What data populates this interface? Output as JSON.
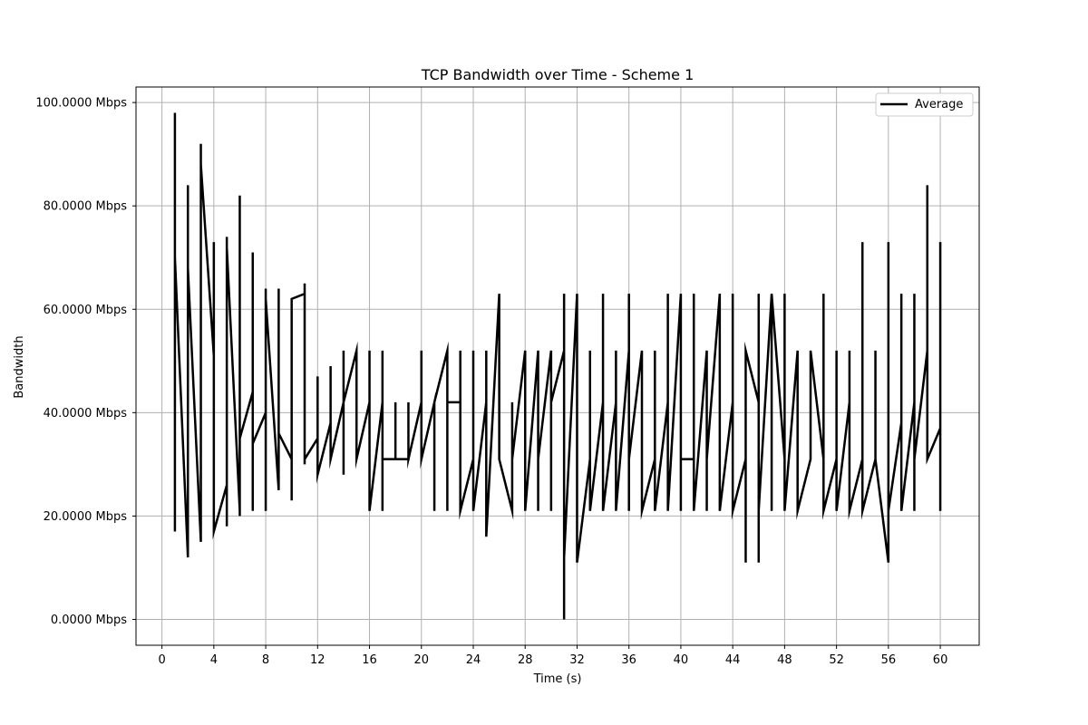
{
  "chart_data": {
    "type": "line",
    "title": "TCP Bandwidth over Time - Scheme 1",
    "xlabel": "Time (s)",
    "ylabel": "Bandwidth",
    "xlim": [
      -2,
      63
    ],
    "ylim": [
      -5,
      103
    ],
    "grid": true,
    "legend_position": "top-right",
    "x_ticks": [
      0,
      4,
      8,
      12,
      16,
      20,
      24,
      28,
      32,
      36,
      40,
      44,
      48,
      52,
      56,
      60
    ],
    "x_tick_labels": [
      "0",
      "4",
      "8",
      "12",
      "16",
      "20",
      "24",
      "28",
      "32",
      "36",
      "40",
      "44",
      "48",
      "52",
      "56",
      "60"
    ],
    "y_ticks": [
      0,
      20,
      40,
      60,
      80,
      100
    ],
    "y_tick_labels": [
      "0.0000 Mbps",
      "20.0000 Mbps",
      "40.0000 Mbps",
      "60.0000 Mbps",
      "80.0000 Mbps",
      "100.0000 Mbps"
    ],
    "series": [
      {
        "name": "Average",
        "color": "#000000",
        "points": [
          [
            1,
            17
          ],
          [
            1,
            98
          ],
          [
            1,
            70
          ],
          [
            2,
            12
          ],
          [
            2,
            84
          ],
          [
            2,
            68
          ],
          [
            3,
            15
          ],
          [
            3,
            92
          ],
          [
            3,
            88
          ],
          [
            4,
            51
          ],
          [
            4,
            73
          ],
          [
            4,
            17
          ],
          [
            5,
            26
          ],
          [
            5,
            74
          ],
          [
            5,
            18
          ],
          [
            5,
            72
          ],
          [
            6,
            21
          ],
          [
            6,
            82
          ],
          [
            6,
            20
          ],
          [
            6,
            35
          ],
          [
            7,
            44
          ],
          [
            7,
            71
          ],
          [
            7,
            21
          ],
          [
            7,
            34
          ],
          [
            8,
            40
          ],
          [
            8,
            64
          ],
          [
            8,
            21
          ],
          [
            8,
            62
          ],
          [
            9,
            25
          ],
          [
            9,
            64
          ],
          [
            9,
            36
          ],
          [
            10,
            31
          ],
          [
            10,
            23
          ],
          [
            10,
            62
          ],
          [
            11,
            63
          ],
          [
            11,
            65
          ],
          [
            11,
            30
          ],
          [
            11,
            31
          ],
          [
            12,
            35
          ],
          [
            12,
            47
          ],
          [
            12,
            28
          ],
          [
            13,
            38
          ],
          [
            13,
            49
          ],
          [
            13,
            31
          ],
          [
            14,
            42
          ],
          [
            14,
            52
          ],
          [
            14,
            28
          ],
          [
            14,
            42
          ],
          [
            15,
            52
          ],
          [
            15,
            31
          ],
          [
            16,
            42
          ],
          [
            16,
            52
          ],
          [
            16,
            21
          ],
          [
            17,
            42
          ],
          [
            17,
            52
          ],
          [
            17,
            21
          ],
          [
            17,
            31
          ],
          [
            18,
            31
          ],
          [
            18,
            42
          ],
          [
            18,
            31
          ],
          [
            19,
            31
          ],
          [
            19,
            42
          ],
          [
            19,
            31
          ],
          [
            20,
            42
          ],
          [
            20,
            52
          ],
          [
            20,
            31
          ],
          [
            21,
            42
          ],
          [
            21,
            21
          ],
          [
            21,
            42
          ],
          [
            22,
            52
          ],
          [
            22,
            21
          ],
          [
            22,
            42
          ],
          [
            23,
            42
          ],
          [
            23,
            52
          ],
          [
            23,
            21
          ],
          [
            24,
            31
          ],
          [
            24,
            52
          ],
          [
            24,
            21
          ],
          [
            25,
            42
          ],
          [
            25,
            52
          ],
          [
            25,
            16
          ],
          [
            26,
            63
          ],
          [
            26,
            31
          ],
          [
            27,
            21
          ],
          [
            27,
            42
          ],
          [
            27,
            31
          ],
          [
            28,
            52
          ],
          [
            28,
            21
          ],
          [
            29,
            52
          ],
          [
            29,
            21
          ],
          [
            29,
            31
          ],
          [
            30,
            52
          ],
          [
            30,
            21
          ],
          [
            30,
            42
          ],
          [
            31,
            52
          ],
          [
            31,
            63
          ],
          [
            31,
            0
          ],
          [
            31,
            12
          ],
          [
            32,
            63
          ],
          [
            32,
            11
          ],
          [
            33,
            31
          ],
          [
            33,
            52
          ],
          [
            33,
            21
          ],
          [
            34,
            42
          ],
          [
            34,
            63
          ],
          [
            34,
            21
          ],
          [
            35,
            42
          ],
          [
            35,
            52
          ],
          [
            35,
            21
          ],
          [
            36,
            52
          ],
          [
            36,
            63
          ],
          [
            36,
            21
          ],
          [
            36,
            31
          ],
          [
            37,
            52
          ],
          [
            37,
            21
          ],
          [
            38,
            31
          ],
          [
            38,
            52
          ],
          [
            38,
            21
          ],
          [
            39,
            42
          ],
          [
            39,
            63
          ],
          [
            39,
            21
          ],
          [
            40,
            63
          ],
          [
            40,
            21
          ],
          [
            40,
            31
          ],
          [
            41,
            31
          ],
          [
            41,
            63
          ],
          [
            41,
            21
          ],
          [
            42,
            52
          ],
          [
            42,
            21
          ],
          [
            42,
            31
          ],
          [
            43,
            63
          ],
          [
            43,
            21
          ],
          [
            44,
            42
          ],
          [
            44,
            63
          ],
          [
            44,
            21
          ],
          [
            45,
            31
          ],
          [
            45,
            52
          ],
          [
            45,
            11
          ],
          [
            45,
            52
          ],
          [
            46,
            42
          ],
          [
            46,
            63
          ],
          [
            46,
            11
          ],
          [
            46,
            21
          ],
          [
            47,
            63
          ],
          [
            47,
            21
          ],
          [
            47,
            63
          ],
          [
            48,
            31
          ],
          [
            48,
            63
          ],
          [
            48,
            21
          ],
          [
            49,
            52
          ],
          [
            49,
            21
          ],
          [
            50,
            31
          ],
          [
            50,
            52
          ],
          [
            51,
            31
          ],
          [
            51,
            63
          ],
          [
            51,
            21
          ],
          [
            52,
            31
          ],
          [
            52,
            52
          ],
          [
            52,
            21
          ],
          [
            53,
            42
          ],
          [
            53,
            52
          ],
          [
            53,
            21
          ],
          [
            54,
            31
          ],
          [
            54,
            73
          ],
          [
            54,
            21
          ],
          [
            55,
            31
          ],
          [
            55,
            52
          ],
          [
            55,
            31
          ],
          [
            56,
            11
          ],
          [
            56,
            73
          ],
          [
            56,
            21
          ],
          [
            57,
            38
          ],
          [
            57,
            63
          ],
          [
            57,
            21
          ],
          [
            58,
            42
          ],
          [
            58,
            63
          ],
          [
            58,
            21
          ],
          [
            58,
            31
          ],
          [
            59,
            52
          ],
          [
            59,
            84
          ],
          [
            59,
            31
          ],
          [
            60,
            37
          ],
          [
            60,
            73
          ],
          [
            60,
            21
          ]
        ]
      }
    ]
  }
}
